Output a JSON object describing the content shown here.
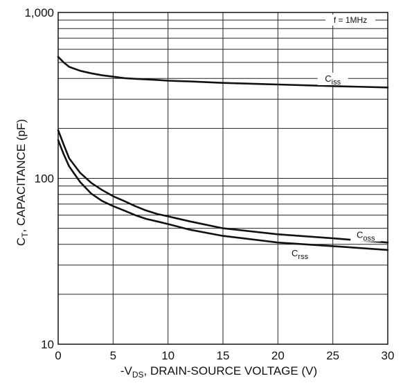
{
  "chart_data": {
    "type": "line",
    "x_scale": "linear",
    "y_scale": "log",
    "xlim": [
      0,
      30
    ],
    "ylim": [
      10,
      1000
    ],
    "x_ticks": [
      0,
      5,
      10,
      15,
      20,
      25,
      30
    ],
    "x_tick_labels": [
      "0",
      "5",
      "10",
      "15",
      "20",
      "25",
      "30"
    ],
    "y_ticks": [
      10,
      100,
      1000
    ],
    "y_tick_labels": [
      "10",
      "100",
      "1,000"
    ],
    "xlabel_parts": {
      "pre": "-V",
      "sub": "DS",
      "post": ", DRAIN-SOURCE VOLTAGE (V)"
    },
    "ylabel_parts": {
      "pre": "C",
      "sub": "T",
      "post": ", CAPACITANCE (pF)"
    },
    "annotation": "f = 1MHz",
    "grid": true,
    "series": [
      {
        "name": "Ciss",
        "label_main": "C",
        "label_sub": "iss",
        "x": [
          0,
          0.5,
          1,
          2,
          3,
          4,
          5,
          6,
          7,
          8,
          9,
          10,
          12,
          15,
          20,
          25,
          30
        ],
        "y": [
          540,
          500,
          470,
          445,
          430,
          418,
          410,
          402,
          398,
          395,
          392,
          388,
          384,
          376,
          368,
          360,
          353
        ]
      },
      {
        "name": "Coss",
        "label_main": "C",
        "label_sub": "oss",
        "x": [
          0,
          0.5,
          1,
          2,
          3,
          4,
          5,
          6,
          7,
          8,
          9,
          10,
          12,
          15,
          20,
          25,
          30
        ],
        "y": [
          195,
          160,
          132,
          108,
          94,
          85,
          78,
          73,
          68,
          64,
          61,
          59,
          55,
          50,
          46,
          43.5,
          41
        ]
      },
      {
        "name": "Crss",
        "label_main": "C",
        "label_sub": "rss",
        "x": [
          0,
          0.5,
          1,
          2,
          3,
          4,
          5,
          6,
          7,
          8,
          9,
          10,
          12,
          15,
          20,
          25,
          30
        ],
        "y": [
          170,
          140,
          118,
          95,
          81,
          73,
          68,
          64,
          60,
          57,
          55,
          53,
          49,
          45,
          41,
          39,
          37
        ]
      }
    ]
  }
}
